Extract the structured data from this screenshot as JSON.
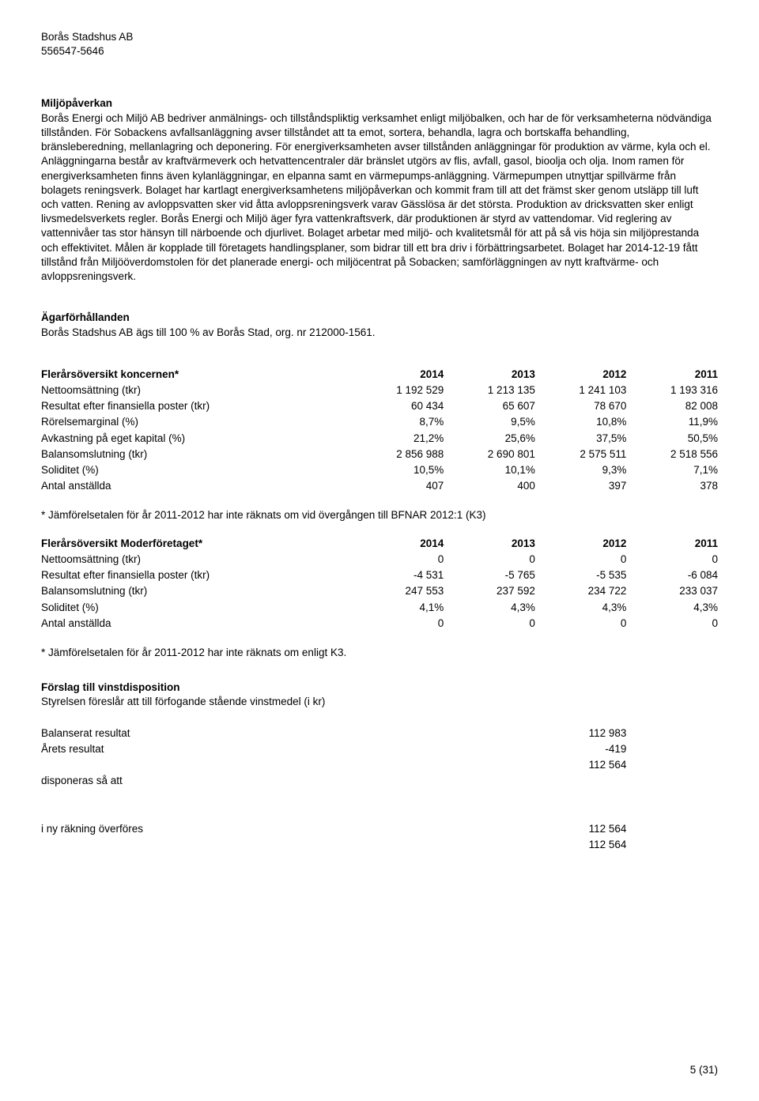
{
  "header": {
    "company": "Borås Stadshus AB",
    "orgnr": "556547-5646"
  },
  "section1": {
    "title": "Miljöpåverkan",
    "body": "Borås Energi och Miljö AB bedriver anmälnings- och tillståndspliktig verksamhet enligt miljöbalken, och har de för verksamheterna nödvändiga tillstånden. För Sobackens avfallsanläggning avser tillståndet att ta emot, sortera, behandla, lagra och bortskaffa behandling, bränsleberedning, mellanlagring och deponering. För energiverksamheten avser tillstånden anläggningar för produktion av värme, kyla och el. Anläggningarna består av kraftvärmeverk och hetvattencentraler där bränslet utgörs av flis, avfall, gasol, bioolja och olja. Inom ramen för energiverksamheten finns även kylanläggningar, en elpanna samt en värmepumps-anläggning. Värmepumpen utnyttjar spillvärme från bolagets reningsverk. Bolaget har kartlagt energiverksamhetens miljöpåverkan och kommit fram till att det främst sker genom utsläpp till luft och vatten. Rening av avloppsvatten sker vid åtta avloppsreningsverk varav Gässlösa är det största. Produktion av dricksvatten sker enligt livsmedelsverkets regler. Borås Energi och Miljö äger fyra vattenkraftsverk, där produktionen är styrd av vattendomar. Vid reglering av vattennivåer tas stor hänsyn till närboende och djurlivet. Bolaget arbetar med miljö- och kvalitetsmål för att på så vis höja sin miljöprestanda och effektivitet. Målen är kopplade till företagets handlingsplaner, som bidrar till ett bra driv i förbättringsarbetet. Bolaget har 2014-12-19 fått tillstånd från Miljööverdomstolen för det planerade energi- och miljöcentrat på Sobacken; samförläggningen av nytt kraftvärme- och avloppsreningsverk."
  },
  "section2": {
    "title": "Ägarförhållanden",
    "body": "Borås Stadshus AB ägs till 100 % av Borås Stad, org. nr 212000-1561."
  },
  "table1": {
    "title": "Flerårsöversikt koncernen*",
    "years": [
      "2014",
      "2013",
      "2012",
      "2011"
    ],
    "rows": [
      {
        "label": "Nettoomsättning (tkr)",
        "v": [
          "1 192 529",
          "1 213 135",
          "1 241 103",
          "1 193 316"
        ]
      },
      {
        "label": "Resultat efter finansiella poster (tkr)",
        "v": [
          "60 434",
          "65 607",
          "78 670",
          "82 008"
        ]
      },
      {
        "label": "Rörelsemarginal (%)",
        "v": [
          "8,7%",
          "9,5%",
          "10,8%",
          "11,9%"
        ]
      },
      {
        "label": "Avkastning på eget kapital (%)",
        "v": [
          "21,2%",
          "25,6%",
          "37,5%",
          "50,5%"
        ]
      },
      {
        "label": "Balansomslutning (tkr)",
        "v": [
          "2 856 988",
          "2 690 801",
          "2 575 511",
          "2 518 556"
        ]
      },
      {
        "label": "Soliditet (%)",
        "v": [
          "10,5%",
          "10,1%",
          "9,3%",
          "7,1%"
        ]
      },
      {
        "label": "Antal anställda",
        "v": [
          "407",
          "400",
          "397",
          "378"
        ]
      }
    ]
  },
  "note1": "* Jämförelsetalen för år 2011-2012 har inte räknats om vid övergången till BFNAR 2012:1 (K3)",
  "table2": {
    "title": "Flerårsöversikt Moderföretaget*",
    "years": [
      "2014",
      "2013",
      "2012",
      "2011"
    ],
    "rows": [
      {
        "label": "Nettoomsättning (tkr)",
        "v": [
          "0",
          "0",
          "0",
          "0"
        ]
      },
      {
        "label": "Resultat efter finansiella poster (tkr)",
        "v": [
          "-4 531",
          "-5 765",
          "-5 535",
          "-6 084"
        ]
      },
      {
        "label": "Balansomslutning (tkr)",
        "v": [
          "247 553",
          "237 592",
          "234 722",
          "233 037"
        ]
      },
      {
        "label": "Soliditet (%)",
        "v": [
          "4,1%",
          "4,3%",
          "4,3%",
          "4,3%"
        ]
      },
      {
        "label": "Antal anställda",
        "v": [
          "0",
          "0",
          "0",
          "0"
        ]
      }
    ]
  },
  "note2": "* Jämförelsetalen för år 2011-2012 har inte räknats om enligt K3.",
  "section3": {
    "title": "Förslag till vinstdisposition",
    "body": "Styrelsen föreslår att till förfogande stående vinstmedel (i kr)"
  },
  "disposition": {
    "rows1": [
      {
        "label": "Balanserat resultat",
        "value": "112 983"
      },
      {
        "label": "Årets resultat",
        "value": "-419"
      },
      {
        "label": "",
        "value": "112 564"
      }
    ],
    "mid": "disponeras så att",
    "rows2": [
      {
        "label": "i ny räkning överföres",
        "value": "112 564"
      },
      {
        "label": "",
        "value": "112 564"
      }
    ]
  },
  "footer": {
    "page": "5  (31)"
  }
}
